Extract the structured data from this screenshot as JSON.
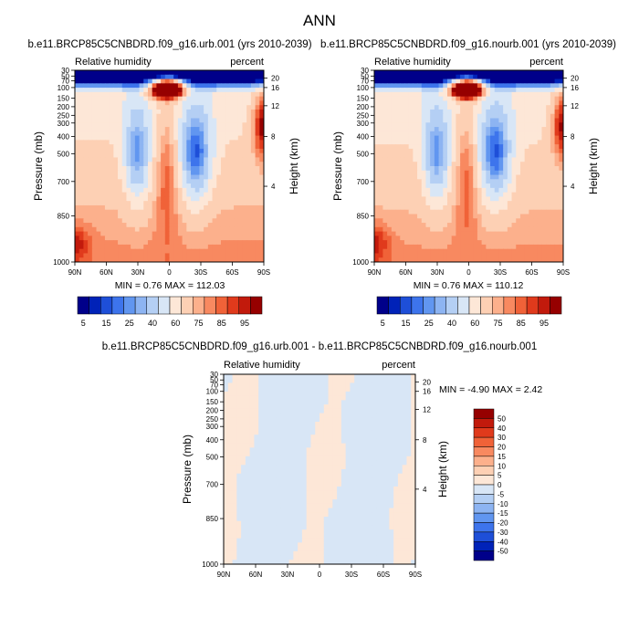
{
  "page": {
    "title": "ANN"
  },
  "colors": {
    "levels_abs": [
      "#00008a",
      "#0022b8",
      "#1e4fd8",
      "#3d74ec",
      "#6196f0",
      "#8db4f2",
      "#b4cff4",
      "#d8e6f6",
      "#fde7d7",
      "#fdd0b4",
      "#fcb08c",
      "#f88960",
      "#f06238",
      "#e03a1c",
      "#c21a0c",
      "#960000"
    ],
    "levels_diff": [
      "#00008a",
      "#0022b8",
      "#1e4fd8",
      "#3d74ec",
      "#6196f0",
      "#8db4f2",
      "#b4cff4",
      "#d8e6f6",
      "#fde7d7",
      "#fdd0b4",
      "#fcb08c",
      "#f88960",
      "#f06238",
      "#e03a1c",
      "#c21a0c",
      "#960000"
    ]
  },
  "chart_data": [
    {
      "type": "heatmap",
      "title": "b.e11.BRCP85C5CNBDRD.f09_g16.urb.001 (yrs 2010-2039)",
      "left_label": "Relative humidity",
      "right_label": "percent",
      "ylabel": "Pressure (mb)",
      "y2label": "Height (km)",
      "x_ticks": [
        "90N",
        "60N",
        "30N",
        "0",
        "30S",
        "60S",
        "90S"
      ],
      "y_ticks": [
        "30",
        "50",
        "70",
        "100",
        "150",
        "200",
        "250",
        "300",
        "400",
        "500",
        "700",
        "850",
        "1000"
      ],
      "y2_ticks": [
        "20",
        "16",
        "12",
        "8",
        "4"
      ],
      "min_max": "MIN =   0.76  MAX = 112.03",
      "colorbar_labels": [
        "5",
        "15",
        "25",
        "40",
        "60",
        "75",
        "85",
        "95"
      ],
      "field": "absolute"
    },
    {
      "type": "heatmap",
      "title": "b.e11.BRCP85C5CNBDRD.f09_g16.nourb.001 (yrs 2010-2039)",
      "left_label": "Relative humidity",
      "right_label": "percent",
      "ylabel": "Pressure (mb)",
      "y2label": "Height (km)",
      "x_ticks": [
        "90N",
        "60N",
        "30N",
        "0",
        "30S",
        "60S",
        "90S"
      ],
      "y_ticks": [
        "30",
        "50",
        "70",
        "100",
        "150",
        "200",
        "250",
        "300",
        "400",
        "500",
        "700",
        "850",
        "1000"
      ],
      "y2_ticks": [
        "20",
        "16",
        "12",
        "8",
        "4"
      ],
      "min_max": "MIN =   0.76  MAX = 110.12",
      "colorbar_labels": [
        "5",
        "15",
        "25",
        "40",
        "60",
        "75",
        "85",
        "95"
      ],
      "field": "absolute"
    },
    {
      "type": "heatmap",
      "title": "b.e11.BRCP85C5CNBDRD.f09_g16.urb.001 - b.e11.BRCP85C5CNBDRD.f09_g16.nourb.001",
      "left_label": "Relative humidity",
      "right_label": "percent",
      "ylabel": "Pressure (mb)",
      "y2label": "Height (km)",
      "x_ticks": [
        "90N",
        "60N",
        "30N",
        "0",
        "30S",
        "60S",
        "90S"
      ],
      "y_ticks": [
        "30",
        "50",
        "70",
        "100",
        "150",
        "200",
        "250",
        "300",
        "400",
        "500",
        "700",
        "850",
        "1000"
      ],
      "y2_ticks": [
        "20",
        "16",
        "12",
        "8",
        "4"
      ],
      "min_max": "MIN =  -4.90  MAX =   2.42",
      "colorbar_labels": [
        "50",
        "40",
        "30",
        "20",
        "15",
        "10",
        "5",
        "0",
        "-5",
        "-10",
        "-15",
        "-20",
        "-30",
        "-40",
        "-50"
      ],
      "field": "difference"
    }
  ]
}
